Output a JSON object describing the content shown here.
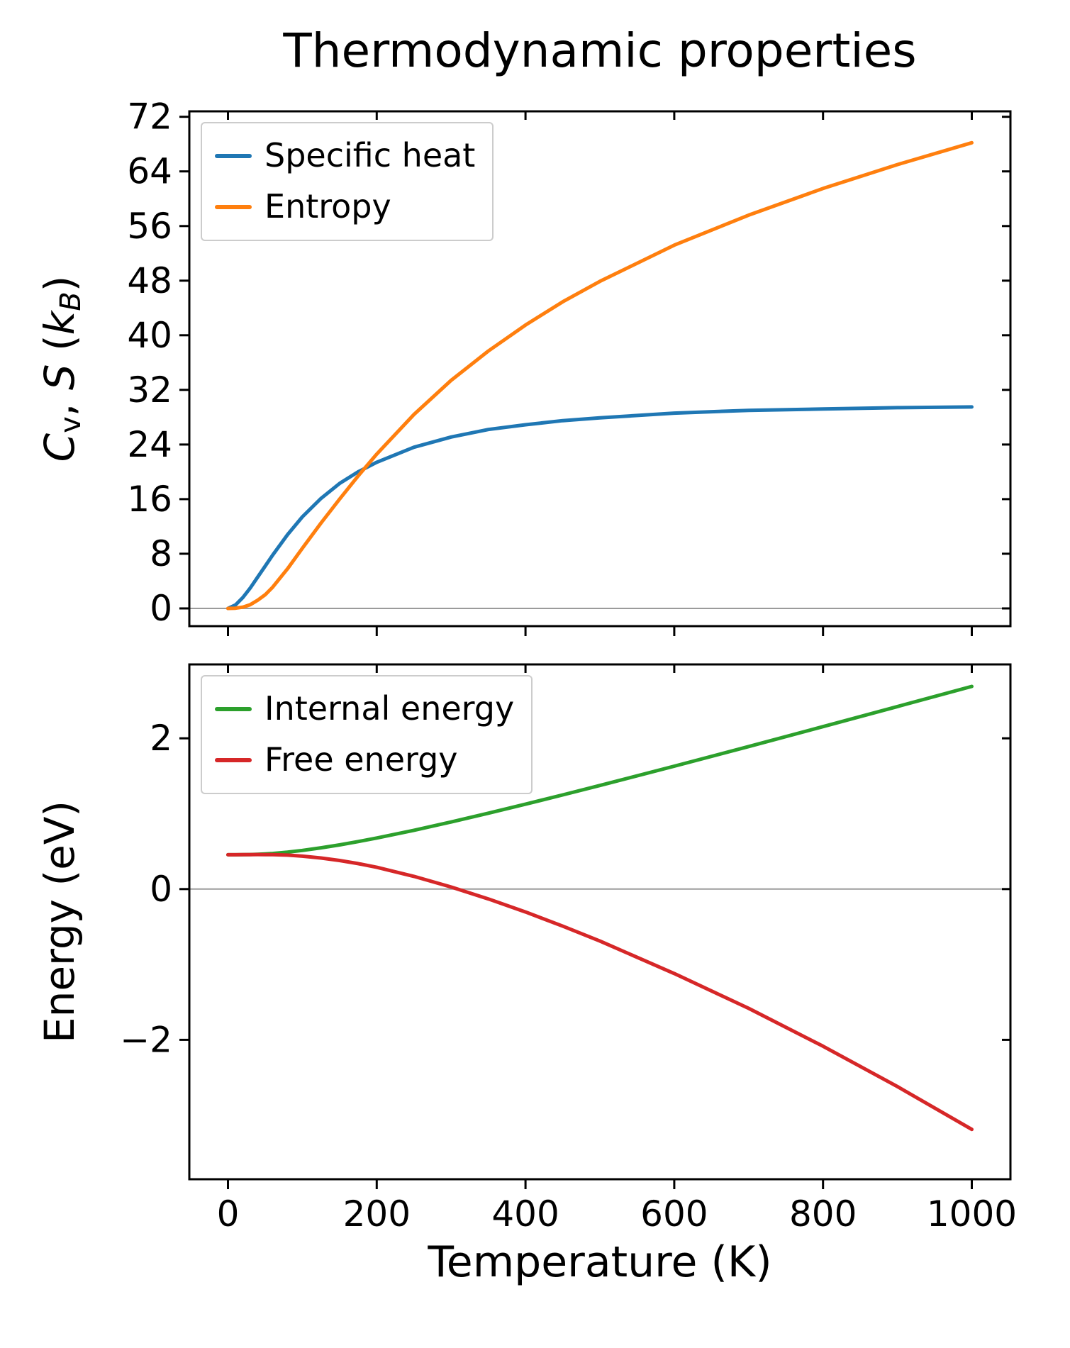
{
  "figure": {
    "title": "Thermodynamic properties",
    "xlabel": "Temperature (K)",
    "background": "#ffffff",
    "axis_color": "#000000",
    "zero_line_color": "#9b9b9b"
  },
  "chart_data": [
    {
      "type": "line",
      "title": "Thermodynamic properties",
      "ylabel": "C_v, S (k_B)",
      "ylabel_segments": [
        {
          "text": "C",
          "italic": true
        },
        {
          "text": "v",
          "sub": true,
          "italic": false
        },
        {
          "text": ", ",
          "italic": false
        },
        {
          "text": "S",
          "italic": true
        },
        {
          "text": " (",
          "italic": false
        },
        {
          "text": "k",
          "italic": true
        },
        {
          "text": "B",
          "sub": true,
          "italic": true
        },
        {
          "text": ")",
          "italic": false
        }
      ],
      "xlim": [
        -52,
        1052
      ],
      "ylim": [
        -2.6,
        72.8
      ],
      "xticks": [
        0,
        200,
        400,
        600,
        800,
        1000
      ],
      "show_x_tick_labels": false,
      "yticks": [
        0,
        8,
        16,
        24,
        32,
        40,
        48,
        56,
        64,
        72
      ],
      "zero_line": true,
      "grid": false,
      "legend_position": "upper left",
      "x": [
        0,
        10,
        20,
        30,
        40,
        50,
        60,
        80,
        100,
        125,
        150,
        175,
        200,
        250,
        300,
        350,
        400,
        450,
        500,
        600,
        700,
        800,
        900,
        1000
      ],
      "series": [
        {
          "name": "Specific heat",
          "color": "#1f77b4",
          "values": [
            0,
            0.5,
            1.6,
            3.0,
            4.6,
            6.2,
            7.8,
            10.8,
            13.4,
            16.1,
            18.3,
            20.0,
            21.4,
            23.6,
            25.1,
            26.2,
            26.9,
            27.5,
            27.9,
            28.6,
            29.0,
            29.2,
            29.4,
            29.5
          ]
        },
        {
          "name": "Entropy",
          "color": "#ff7f0e",
          "values": [
            0,
            0.03,
            0.18,
            0.55,
            1.2,
            2.0,
            3.1,
            5.8,
            8.8,
            12.5,
            16.0,
            19.4,
            22.6,
            28.4,
            33.4,
            37.7,
            41.5,
            44.9,
            47.9,
            53.2,
            57.6,
            61.5,
            65.0,
            68.2
          ]
        }
      ]
    },
    {
      "type": "line",
      "ylabel": "Energy (eV)",
      "ylabel_segments": [
        {
          "text": "Energy (eV)",
          "italic": false
        }
      ],
      "xlabel": "Temperature (K)",
      "xlim": [
        -52,
        1052
      ],
      "ylim": [
        -3.85,
        2.98
      ],
      "xticks": [
        0,
        200,
        400,
        600,
        800,
        1000
      ],
      "show_x_tick_labels": true,
      "yticks": [
        -2,
        0,
        2
      ],
      "zero_line": true,
      "grid": false,
      "legend_position": "upper left",
      "x": [
        0,
        10,
        20,
        30,
        40,
        50,
        60,
        80,
        100,
        125,
        150,
        175,
        200,
        250,
        300,
        350,
        400,
        450,
        500,
        600,
        700,
        800,
        900,
        1000
      ],
      "series": [
        {
          "name": "Internal energy",
          "color": "#2ca02c",
          "values": [
            0.455,
            0.455,
            0.456,
            0.458,
            0.462,
            0.466,
            0.472,
            0.49,
            0.512,
            0.547,
            0.586,
            0.63,
            0.677,
            0.78,
            0.89,
            1.006,
            1.126,
            1.249,
            1.374,
            1.63,
            1.891,
            2.155,
            2.421,
            2.688
          ]
        },
        {
          "name": "Free energy",
          "color": "#d62728",
          "values": [
            0.455,
            0.455,
            0.456,
            0.457,
            0.458,
            0.457,
            0.456,
            0.45,
            0.436,
            0.412,
            0.379,
            0.337,
            0.288,
            0.168,
            0.027,
            -0.131,
            -0.304,
            -0.492,
            -0.69,
            -1.121,
            -1.583,
            -2.085,
            -2.62,
            -3.189
          ]
        }
      ]
    }
  ]
}
